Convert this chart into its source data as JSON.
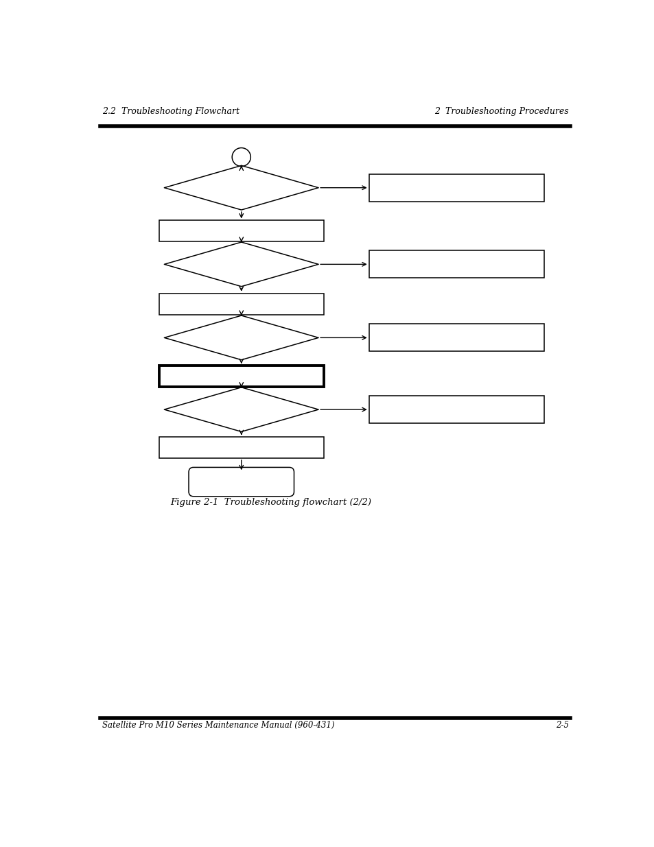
{
  "header_left": "2.2  Troubleshooting Flowchart",
  "header_right": "2  Troubleshooting Procedures",
  "footer_left": "Satellite Pro M10 Series Maintenance Manual (960-431)",
  "footer_right": "2-5",
  "caption": "Figure 2-1  Troubleshooting flowchart (2/2)",
  "bg_color": "#ffffff",
  "line_color": "#000000",
  "text_color": "#000000",
  "page_width": 9.54,
  "page_height": 12.35
}
